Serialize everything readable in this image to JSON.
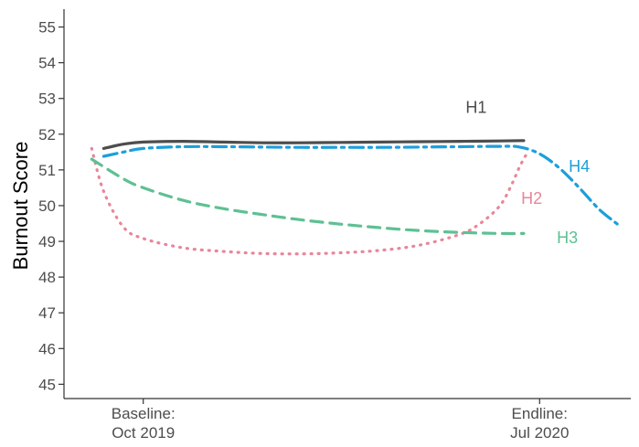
{
  "chart_data": {
    "type": "line",
    "title": "",
    "xlabel": "",
    "ylabel": "Burnout Score",
    "ylim": [
      44.6,
      55.5
    ],
    "yticks": [
      45,
      46,
      47,
      48,
      49,
      50,
      51,
      52,
      53,
      54,
      55
    ],
    "x_tick_labels": [
      {
        "x": 0,
        "lines": [
          "Baseline:",
          "Oct 2019"
        ]
      },
      {
        "x": 1,
        "lines": [
          "Endline:",
          "Jul 2020"
        ]
      }
    ],
    "xlim": [
      -0.2,
      1.23
    ],
    "grid": false,
    "legend": "none",
    "series": [
      {
        "name": "H1",
        "color": "#4d4d4d",
        "dash": "solid",
        "x": [
          -0.1,
          -0.05,
          0.0,
          0.1,
          0.2,
          0.3,
          0.4,
          0.5,
          0.6,
          0.7,
          0.8,
          0.9,
          0.96
        ],
        "y": [
          51.6,
          51.72,
          51.78,
          51.8,
          51.78,
          51.76,
          51.76,
          51.77,
          51.78,
          51.79,
          51.8,
          51.81,
          51.82
        ]
      },
      {
        "name": "H2",
        "color": "#e8869a",
        "dash": "dotted",
        "x": [
          -0.13,
          -0.1,
          -0.05,
          0.0,
          0.1,
          0.2,
          0.3,
          0.4,
          0.5,
          0.6,
          0.7,
          0.8,
          0.85,
          0.9,
          0.93,
          0.95,
          0.97
        ],
        "y": [
          51.6,
          50.4,
          49.4,
          49.08,
          48.82,
          48.72,
          48.66,
          48.65,
          48.68,
          48.75,
          48.9,
          49.2,
          49.5,
          50.0,
          50.6,
          51.1,
          51.5
        ]
      },
      {
        "name": "H3",
        "color": "#5ec093",
        "dash": "dashed",
        "x": [
          -0.13,
          -0.05,
          0.0,
          0.1,
          0.2,
          0.3,
          0.4,
          0.5,
          0.6,
          0.7,
          0.8,
          0.9,
          0.96
        ],
        "y": [
          51.3,
          50.75,
          50.5,
          50.15,
          49.92,
          49.75,
          49.6,
          49.48,
          49.38,
          49.3,
          49.25,
          49.22,
          49.22
        ]
      },
      {
        "name": "H4",
        "color": "#1c9fdb",
        "dash": "dotdash",
        "x": [
          -0.1,
          -0.05,
          0.0,
          0.1,
          0.2,
          0.3,
          0.4,
          0.5,
          0.6,
          0.7,
          0.8,
          0.9,
          0.95,
          1.0,
          1.05,
          1.1,
          1.15,
          1.2
        ],
        "y": [
          51.38,
          51.5,
          51.6,
          51.65,
          51.65,
          51.64,
          51.63,
          51.63,
          51.63,
          51.64,
          51.65,
          51.66,
          51.64,
          51.45,
          51.05,
          50.5,
          49.9,
          49.45
        ]
      }
    ],
    "series_labels": [
      {
        "name": "H1",
        "x": 0.84,
        "y": 52.6
      },
      {
        "name": "H2",
        "x": 0.98,
        "y": 50.05
      },
      {
        "name": "H3",
        "x": 1.07,
        "y": 48.95
      },
      {
        "name": "H4",
        "x": 1.1,
        "y": 50.95
      }
    ]
  }
}
